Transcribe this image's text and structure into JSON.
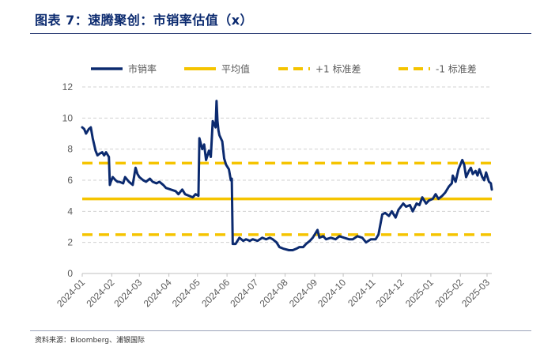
{
  "title": "图表 7：速腾聚创：市销率估值（x）",
  "source": "资料来源：Bloomberg、浦银国际",
  "chart_data": {
    "type": "line",
    "title": "",
    "xlabel": "",
    "ylabel": "",
    "ylim": [
      0,
      12
    ],
    "yticks": [
      0,
      2,
      4,
      6,
      8,
      10,
      12
    ],
    "xlim": [
      "2024-01-01",
      "2025-03-06"
    ],
    "xticks": [
      "2024-01",
      "2024-02",
      "2024-03",
      "2024-04",
      "2024-05",
      "2024-06",
      "2024-07",
      "2024-08",
      "2024-09",
      "2024-10",
      "2024-11",
      "2024-12",
      "2025-01",
      "2025-02",
      "2025-03"
    ],
    "grid": "horizontal dashed",
    "legend_position": "top",
    "colors": {
      "series": "#0b2a6f",
      "reference": "#f5c400",
      "grid": "#d0d0d0"
    },
    "series": [
      {
        "name": "市销率",
        "style": "solid",
        "color": "#0b2a6f",
        "points": [
          [
            "2024-01-01",
            9.4
          ],
          [
            "2024-01-03",
            9.3
          ],
          [
            "2024-01-05",
            9.0
          ],
          [
            "2024-01-08",
            9.3
          ],
          [
            "2024-01-10",
            9.4
          ],
          [
            "2024-01-12",
            8.7
          ],
          [
            "2024-01-15",
            7.9
          ],
          [
            "2024-01-17",
            7.6
          ],
          [
            "2024-01-19",
            7.7
          ],
          [
            "2024-01-22",
            7.8
          ],
          [
            "2024-01-24",
            7.6
          ],
          [
            "2024-01-26",
            7.8
          ],
          [
            "2024-01-29",
            7.5
          ],
          [
            "2024-01-30",
            5.7
          ],
          [
            "2024-01-31",
            5.9
          ],
          [
            "2024-02-02",
            6.2
          ],
          [
            "2024-02-05",
            6.0
          ],
          [
            "2024-02-07",
            5.9
          ],
          [
            "2024-02-09",
            5.9
          ],
          [
            "2024-02-13",
            5.8
          ],
          [
            "2024-02-15",
            6.2
          ],
          [
            "2024-02-19",
            5.9
          ],
          [
            "2024-02-21",
            5.8
          ],
          [
            "2024-02-23",
            5.7
          ],
          [
            "2024-02-26",
            6.8
          ],
          [
            "2024-02-28",
            6.4
          ],
          [
            "2024-03-01",
            6.2
          ],
          [
            "2024-03-05",
            6.0
          ],
          [
            "2024-03-08",
            5.9
          ],
          [
            "2024-03-12",
            6.1
          ],
          [
            "2024-03-15",
            5.9
          ],
          [
            "2024-03-19",
            5.8
          ],
          [
            "2024-03-22",
            5.9
          ],
          [
            "2024-03-26",
            5.7
          ],
          [
            "2024-03-29",
            5.5
          ],
          [
            "2024-04-03",
            5.4
          ],
          [
            "2024-04-08",
            5.3
          ],
          [
            "2024-04-11",
            5.1
          ],
          [
            "2024-04-15",
            5.4
          ],
          [
            "2024-04-18",
            5.1
          ],
          [
            "2024-04-22",
            5.0
          ],
          [
            "2024-04-26",
            4.9
          ],
          [
            "2024-04-29",
            5.1
          ],
          [
            "2024-05-02",
            5.0
          ],
          [
            "2024-05-03",
            8.7
          ],
          [
            "2024-05-06",
            8.0
          ],
          [
            "2024-05-08",
            8.3
          ],
          [
            "2024-05-10",
            7.3
          ],
          [
            "2024-05-13",
            7.9
          ],
          [
            "2024-05-15",
            7.5
          ],
          [
            "2024-05-17",
            9.8
          ],
          [
            "2024-05-20",
            9.4
          ],
          [
            "2024-05-21",
            11.1
          ],
          [
            "2024-05-22",
            9.8
          ],
          [
            "2024-05-23",
            9.2
          ],
          [
            "2024-05-24",
            8.9
          ],
          [
            "2024-05-27",
            8.5
          ],
          [
            "2024-05-29",
            7.4
          ],
          [
            "2024-05-31",
            7.0
          ],
          [
            "2024-06-03",
            6.7
          ],
          [
            "2024-06-05",
            6.0
          ],
          [
            "2024-06-06",
            6.1
          ],
          [
            "2024-06-07",
            1.9
          ],
          [
            "2024-06-10",
            1.9
          ],
          [
            "2024-06-12",
            2.1
          ],
          [
            "2024-06-14",
            2.3
          ],
          [
            "2024-06-18",
            2.1
          ],
          [
            "2024-06-21",
            2.2
          ],
          [
            "2024-06-25",
            2.1
          ],
          [
            "2024-06-28",
            2.2
          ],
          [
            "2024-07-03",
            2.1
          ],
          [
            "2024-07-08",
            2.3
          ],
          [
            "2024-07-12",
            2.2
          ],
          [
            "2024-07-16",
            2.3
          ],
          [
            "2024-07-19",
            2.2
          ],
          [
            "2024-07-23",
            2.0
          ],
          [
            "2024-07-26",
            1.7
          ],
          [
            "2024-07-30",
            1.6
          ],
          [
            "2024-08-05",
            1.5
          ],
          [
            "2024-08-09",
            1.5
          ],
          [
            "2024-08-13",
            1.6
          ],
          [
            "2024-08-16",
            1.7
          ],
          [
            "2024-08-20",
            1.7
          ],
          [
            "2024-08-23",
            1.9
          ],
          [
            "2024-08-27",
            2.1
          ],
          [
            "2024-08-30",
            2.3
          ],
          [
            "2024-09-02",
            2.6
          ],
          [
            "2024-09-04",
            2.8
          ],
          [
            "2024-09-06",
            2.3
          ],
          [
            "2024-09-10",
            2.4
          ],
          [
            "2024-09-13",
            2.2
          ],
          [
            "2024-09-18",
            2.3
          ],
          [
            "2024-09-23",
            2.2
          ],
          [
            "2024-09-27",
            2.4
          ],
          [
            "2024-10-02",
            2.3
          ],
          [
            "2024-10-07",
            2.2
          ],
          [
            "2024-10-11",
            2.2
          ],
          [
            "2024-10-16",
            2.4
          ],
          [
            "2024-10-21",
            2.3
          ],
          [
            "2024-10-25",
            2.0
          ],
          [
            "2024-10-30",
            2.2
          ],
          [
            "2024-11-04",
            2.2
          ],
          [
            "2024-11-07",
            2.5
          ],
          [
            "2024-11-11",
            3.8
          ],
          [
            "2024-11-14",
            3.9
          ],
          [
            "2024-11-18",
            3.7
          ],
          [
            "2024-11-21",
            4.0
          ],
          [
            "2024-11-25",
            3.6
          ],
          [
            "2024-11-28",
            4.1
          ],
          [
            "2024-12-03",
            4.5
          ],
          [
            "2024-12-06",
            4.3
          ],
          [
            "2024-12-10",
            4.4
          ],
          [
            "2024-12-13",
            4.0
          ],
          [
            "2024-12-17",
            4.5
          ],
          [
            "2024-12-20",
            4.4
          ],
          [
            "2024-12-23",
            4.9
          ],
          [
            "2024-12-27",
            4.5
          ],
          [
            "2024-12-30",
            4.7
          ],
          [
            "2025-01-03",
            4.8
          ],
          [
            "2025-01-06",
            5.1
          ],
          [
            "2025-01-09",
            4.8
          ],
          [
            "2025-01-13",
            5.0
          ],
          [
            "2025-01-16",
            5.2
          ],
          [
            "2025-01-20",
            5.6
          ],
          [
            "2025-01-23",
            5.8
          ],
          [
            "2025-01-24",
            6.3
          ],
          [
            "2025-01-27",
            5.9
          ],
          [
            "2025-01-30",
            6.7
          ],
          [
            "2025-02-03",
            7.3
          ],
          [
            "2025-02-05",
            7.0
          ],
          [
            "2025-02-07",
            6.2
          ],
          [
            "2025-02-10",
            6.6
          ],
          [
            "2025-02-12",
            6.8
          ],
          [
            "2025-02-14",
            6.4
          ],
          [
            "2025-02-17",
            6.6
          ],
          [
            "2025-02-19",
            6.3
          ],
          [
            "2025-02-21",
            6.7
          ],
          [
            "2025-02-24",
            6.2
          ],
          [
            "2025-02-26",
            6.0
          ],
          [
            "2025-02-28",
            6.5
          ],
          [
            "2025-03-03",
            5.9
          ],
          [
            "2025-03-05",
            5.8
          ],
          [
            "2025-03-06",
            5.4
          ]
        ]
      },
      {
        "name": "平均值",
        "style": "solid",
        "color": "#f5c400",
        "value": 4.8
      },
      {
        "name": "+1 标准差",
        "style": "dashed",
        "color": "#f5c400",
        "value": 7.1
      },
      {
        "name": "-1 标准差",
        "style": "dashed",
        "color": "#f5c400",
        "value": 2.5
      }
    ]
  }
}
